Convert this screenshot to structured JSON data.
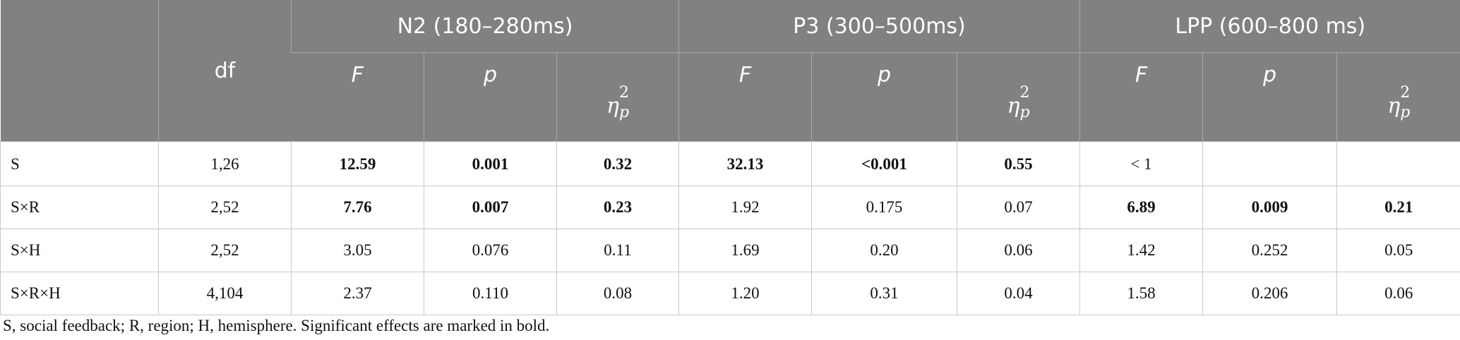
{
  "table": {
    "header_top": [
      null,
      "df",
      "N2 (180–280ms)",
      "P3 (300–500ms)",
      "LPP (600–800 ms)"
    ],
    "header_sub": [
      {
        "stat": "F"
      },
      {
        "stat": "p"
      },
      {
        "symbol": "η",
        "sup": "2",
        "sub": "p"
      },
      {
        "stat": "F"
      },
      {
        "stat": "p"
      },
      {
        "symbol": "η",
        "sup": "2",
        "sub": "p"
      },
      {
        "stat": "F"
      },
      {
        "stat": "p"
      },
      {
        "symbol": "η",
        "sup": "2",
        "sub": "p"
      }
    ],
    "rows": [
      [
        "S",
        "1,26",
        "12.59",
        "0.001",
        "0.32",
        "32.13",
        "<0.001",
        "0.55",
        "< 1",
        null,
        null
      ],
      [
        "S×R",
        "2,52",
        "7.76",
        "0.007",
        "0.23",
        "1.92",
        "0.175",
        "0.07",
        "6.89",
        "0.009",
        "0.21"
      ],
      [
        "S×H",
        "2,52",
        "3.05",
        "0.076",
        "0.11",
        "1.69",
        "0.20",
        "0.06",
        "1.42",
        "0.252",
        "0.05"
      ],
      [
        "S×R×H",
        "4,104",
        "2.37",
        "0.110",
        "0.08",
        "1.20",
        "0.31",
        "0.04",
        "1.58",
        "0.206",
        "0.06"
      ]
    ]
  },
  "footnote": "S, social feedback; R, region; H, hemisphere. Significant effects are marked in bold."
}
